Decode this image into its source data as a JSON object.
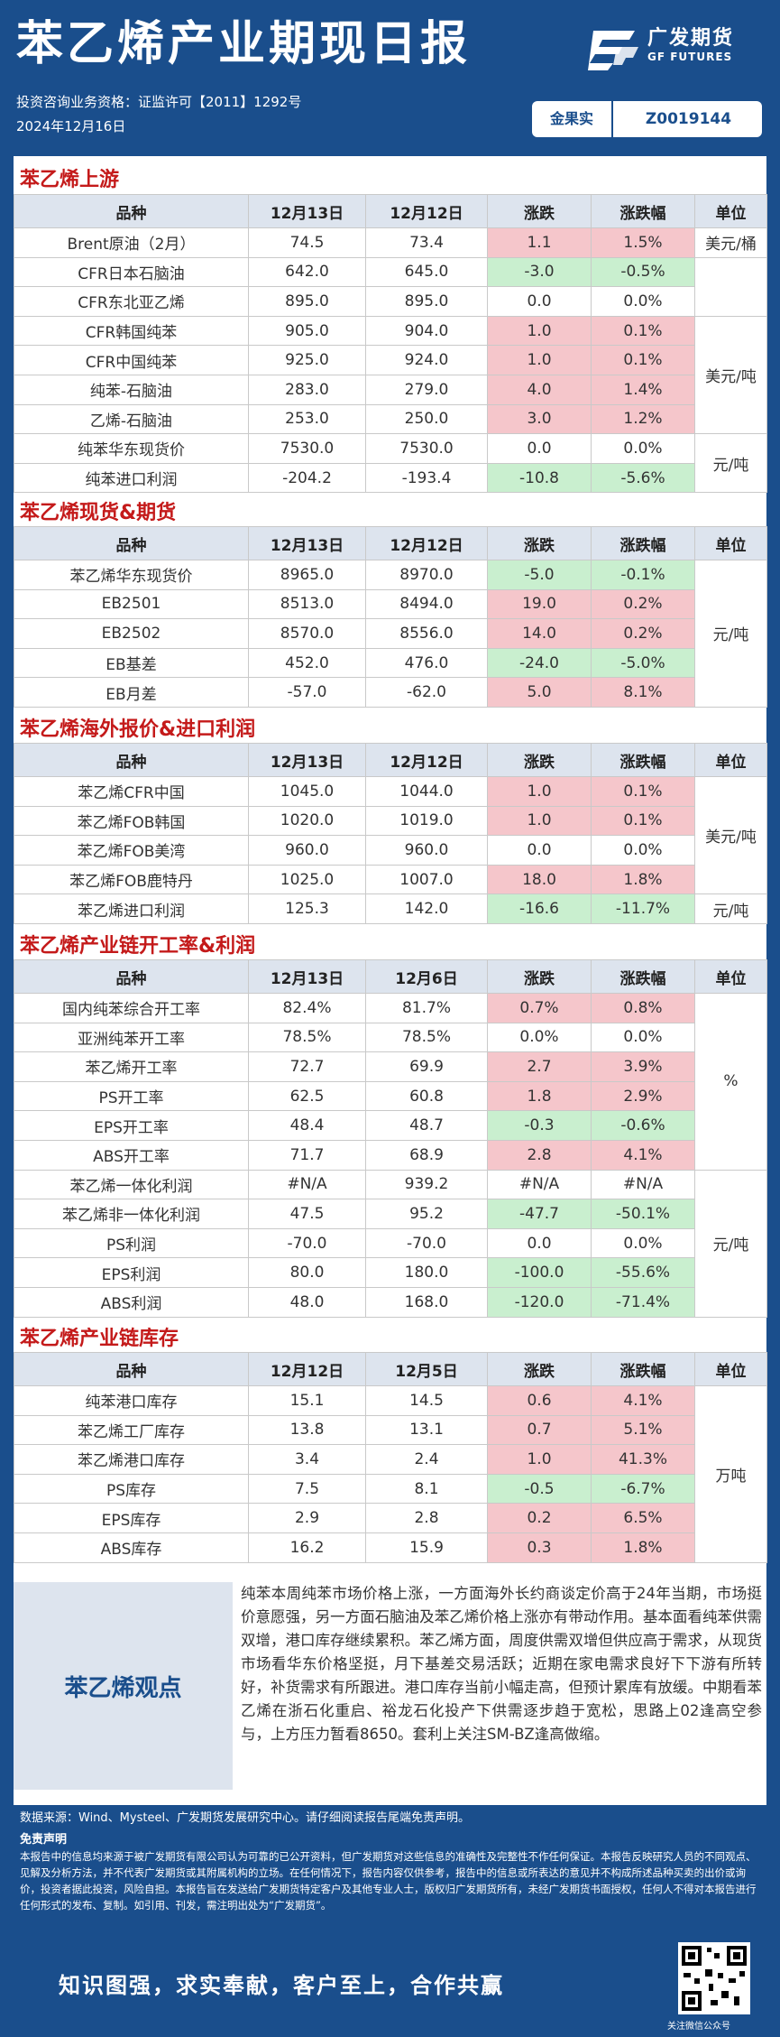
{
  "header": {
    "title": "苯乙烯产业期现日报",
    "logo_cn": "广发期货",
    "logo_en": "GF FUTURES",
    "license": "投资咨询业务资格：证监许可【2011】1292号",
    "date": "2024年12月16日",
    "analyst_label": "金果实",
    "analyst_id": "Z0019144"
  },
  "sections": [
    {
      "title": "苯乙烯上游",
      "headers": [
        "品种",
        "12月13日",
        "12月12日",
        "涨跌",
        "涨跌幅",
        "单位"
      ],
      "rows": [
        [
          "Brent原油（2月）",
          "74.5",
          "73.4",
          "1.1",
          "1.5%"
        ],
        [
          "CFR日本石脑油",
          "642.0",
          "645.0",
          "-3.0",
          "-0.5%"
        ],
        [
          "CFR东北亚乙烯",
          "895.0",
          "895.0",
          "0.0",
          "0.0%"
        ],
        [
          "CFR韩国纯苯",
          "905.0",
          "904.0",
          "1.0",
          "0.1%"
        ],
        [
          "CFR中国纯苯",
          "925.0",
          "924.0",
          "1.0",
          "0.1%"
        ],
        [
          "纯苯-石脑油",
          "283.0",
          "279.0",
          "4.0",
          "1.4%"
        ],
        [
          "乙烯-石脑油",
          "253.0",
          "250.0",
          "3.0",
          "1.2%"
        ],
        [
          "纯苯华东现货价",
          "7530.0",
          "7530.0",
          "0.0",
          "0.0%"
        ],
        [
          "纯苯进口利润",
          "-204.2",
          "-193.4",
          "-10.8",
          "-5.6%"
        ]
      ],
      "units": [
        {
          "text": "美元/桶"
        },
        {
          "text": ""
        },
        {
          "text": "美元/吨"
        },
        {
          "text": ""
        },
        {
          "text": "元/吨"
        }
      ]
    },
    {
      "title": "苯乙烯现货&期货",
      "headers": [
        "品种",
        "12月13日",
        "12月12日",
        "涨跌",
        "涨跌幅",
        "单位"
      ],
      "rows": [
        [
          "苯乙烯华东现货价",
          "8965.0",
          "8970.0",
          "-5.0",
          "-0.1%"
        ],
        [
          "EB2501",
          "8513.0",
          "8494.0",
          "19.0",
          "0.2%"
        ],
        [
          "EB2502",
          "8570.0",
          "8556.0",
          "14.0",
          "0.2%"
        ],
        [
          "EB基差",
          "452.0",
          "476.0",
          "-24.0",
          "-5.0%"
        ],
        [
          "EB月差",
          "-57.0",
          "-62.0",
          "5.0",
          "8.1%"
        ]
      ],
      "units": [
        {
          "text": "元/吨"
        }
      ]
    },
    {
      "title": "苯乙烯海外报价&进口利润",
      "headers": [
        "品种",
        "12月13日",
        "12月12日",
        "涨跌",
        "涨跌幅",
        "单位"
      ],
      "rows": [
        [
          "苯乙烯CFR中国",
          "1045.0",
          "1044.0",
          "1.0",
          "0.1%"
        ],
        [
          "苯乙烯FOB韩国",
          "1020.0",
          "1019.0",
          "1.0",
          "0.1%"
        ],
        [
          "苯乙烯FOB美湾",
          "960.0",
          "960.0",
          "0.0",
          "0.0%"
        ],
        [
          "苯乙烯FOB鹿特丹",
          "1025.0",
          "1007.0",
          "18.0",
          "1.8%"
        ],
        [
          "苯乙烯进口利润",
          "125.3",
          "142.0",
          "-16.6",
          "-11.7%"
        ]
      ],
      "units": [
        {
          "text": "美元/吨"
        },
        {
          "text": "元/吨"
        }
      ]
    },
    {
      "title": "苯乙烯产业链开工率&利润",
      "headers": [
        "品种",
        "12月13日",
        "12月6日",
        "涨跌",
        "涨跌幅",
        "单位"
      ],
      "rows": [
        [
          "国内纯苯综合开工率",
          "82.4%",
          "81.7%",
          "0.7%",
          "0.8%"
        ],
        [
          "亚洲纯苯开工率",
          "78.5%",
          "78.5%",
          "0.0%",
          "0.0%"
        ],
        [
          "苯乙烯开工率",
          "72.7",
          "69.9",
          "2.7",
          "3.9%"
        ],
        [
          "PS开工率",
          "62.5",
          "60.8",
          "1.8",
          "2.9%"
        ],
        [
          "EPS开工率",
          "48.4",
          "48.7",
          "-0.3",
          "-0.6%"
        ],
        [
          "ABS开工率",
          "71.7",
          "68.9",
          "2.8",
          "4.1%"
        ],
        [
          "苯乙烯一体化利润",
          "#N/A",
          "939.2",
          "#N/A",
          "#N/A"
        ],
        [
          "苯乙烯非一体化利润",
          "47.5",
          "95.2",
          "-47.7",
          "-50.1%"
        ],
        [
          "PS利润",
          "-70.0",
          "-70.0",
          "0.0",
          "0.0%"
        ],
        [
          "EPS利润",
          "80.0",
          "180.0",
          "-100.0",
          "-55.6%"
        ],
        [
          "ABS利润",
          "48.0",
          "168.0",
          "-120.0",
          "-71.4%"
        ]
      ],
      "units": [
        {
          "text": "%"
        },
        {
          "text": "元/吨"
        }
      ]
    },
    {
      "title": "苯乙烯产业链库存",
      "headers": [
        "品种",
        "12月12日",
        "12月5日",
        "涨跌",
        "涨跌幅",
        "单位"
      ],
      "rows": [
        [
          "纯苯港口库存",
          "15.1",
          "14.5",
          "0.6",
          "4.1%"
        ],
        [
          "苯乙烯工厂库存",
          "13.8",
          "13.1",
          "0.7",
          "5.1%"
        ],
        [
          "苯乙烯港口库存",
          "3.4",
          "2.4",
          "1.0",
          "41.3%"
        ],
        [
          "PS库存",
          "7.5",
          "8.1",
          "-0.5",
          "-6.7%"
        ],
        [
          "EPS库存",
          "2.9",
          "2.8",
          "0.2",
          "6.5%"
        ],
        [
          "ABS库存",
          "16.2",
          "15.9",
          "0.3",
          "1.8%"
        ]
      ],
      "units": [
        {
          "text": "万吨"
        }
      ]
    }
  ],
  "view": {
    "label": "苯乙烯观点",
    "text": "纯苯本周纯苯市场价格上涨，一方面海外长约商谈定价高于24年当期，市场挺价意愿强，另一方面石脑油及苯乙烯价格上涨亦有带动作用。基本面看纯苯供需双增，港口库存继续累积。苯乙烯方面，周度供需双增但供应高于需求，从现货市场看华东价格坚挺，月下基差交易活跃；近期在家电需求良好下下游有所转好，补货需求有所跟进。港口库存当前小幅走高，但预计累库有放缓。中期看苯乙烯在浙石化重启、裕龙石化投产下供需逐步趋于宽松，思路上02逢高空参与，上方压力暂看8650。套利上关注SM-BZ逢高做缩。"
  },
  "footer": {
    "source": "数据来源：Wind、Mysteel、广发期货发展研究中心。请仔细阅读报告尾端免责声明。",
    "disclaimer_title": "免责声明",
    "disclaimer": "本报告中的信息均来源于被广发期货有限公司认为可靠的已公开资料，但广发期货对这些信息的准确性及完整性不作任何保证。本报告反映研究人员的不同观点、见解及分析方法，并不代表广发期货或其附属机构的立场。在任何情况下，报告内容仅供参考，报告中的信息或所表达的意见并不构成所述品种买卖的出价或询价，投资者据此投资，风险自担。本报告旨在发送给广发期货特定客户及其他专业人士，版权归广发期货所有，未经广发期货书面授权，任何人不得对本报告进行任何形式的发布、复制。如引用、刊发，需注明出处为“广发期货”。",
    "slogan": "知识图强，求实奉献，客户至上，合作共赢",
    "qr_caption": "关注微信公众号"
  },
  "colors": {
    "brand": "#1a4e8c",
    "up": "#f5c6cb",
    "down": "#c9efcf",
    "section_title": "#c41a1a"
  },
  "icons": [
    "gf-logo-icon",
    "qr-code-icon"
  ]
}
